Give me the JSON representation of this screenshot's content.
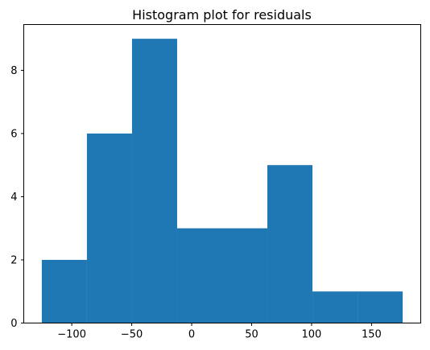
{
  "chart_data": {
    "type": "bar",
    "title": "Histogram plot for residuals",
    "xlabel": "",
    "ylabel": "",
    "bins": [
      {
        "x0": -125,
        "x1": -87.375,
        "count": 2
      },
      {
        "x0": -87.375,
        "x1": -49.75,
        "count": 6
      },
      {
        "x0": -49.75,
        "x1": -12.125,
        "count": 9
      },
      {
        "x0": -12.125,
        "x1": 25.5,
        "count": 3
      },
      {
        "x0": 25.5,
        "x1": 63.125,
        "count": 3
      },
      {
        "x0": 63.125,
        "x1": 100.75,
        "count": 5
      },
      {
        "x0": 100.75,
        "x1": 138.375,
        "count": 1
      },
      {
        "x0": 138.375,
        "x1": 176,
        "count": 1
      }
    ],
    "xlim": [
      -140.05,
      191.05
    ],
    "ylim": [
      0,
      9.45
    ],
    "xticks": [
      {
        "value": -100,
        "label": "−100"
      },
      {
        "value": -50,
        "label": "−50"
      },
      {
        "value": 0,
        "label": "0"
      },
      {
        "value": 50,
        "label": "50"
      },
      {
        "value": 100,
        "label": "100"
      },
      {
        "value": 150,
        "label": "150"
      }
    ],
    "yticks": [
      {
        "value": 0,
        "label": "0"
      },
      {
        "value": 2,
        "label": "2"
      },
      {
        "value": 4,
        "label": "4"
      },
      {
        "value": 6,
        "label": "6"
      },
      {
        "value": 8,
        "label": "8"
      }
    ],
    "bar_color": "#1f77b4",
    "grid": false,
    "legend": "none"
  }
}
